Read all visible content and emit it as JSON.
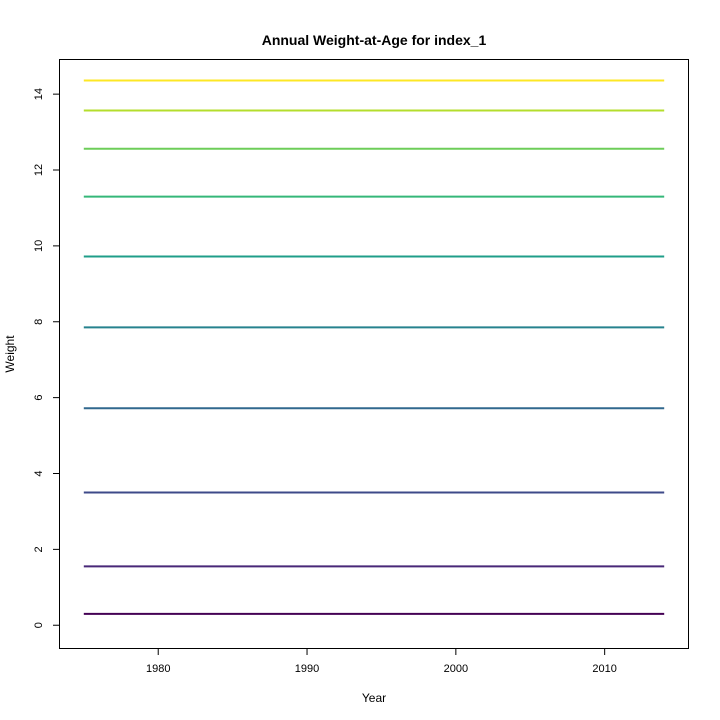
{
  "chart_data": {
    "type": "line",
    "title": "Annual Weight-at-Age for index_1",
    "xlabel": "Year",
    "ylabel": "Weight",
    "xlim": [
      1973.4,
      2015.6
    ],
    "ylim": [
      -0.6,
      14.9
    ],
    "x_ticks": [
      1980,
      1990,
      2000,
      2010
    ],
    "y_ticks": [
      0,
      2,
      4,
      6,
      8,
      10,
      12,
      14
    ],
    "x": [
      1975,
      2014
    ],
    "series": [
      {
        "values": [
          0.3,
          0.3
        ],
        "color": "#440154"
      },
      {
        "values": [
          1.55,
          1.55
        ],
        "color": "#482878"
      },
      {
        "values": [
          3.5,
          3.5
        ],
        "color": "#3E4A89"
      },
      {
        "values": [
          5.72,
          5.72
        ],
        "color": "#31688E"
      },
      {
        "values": [
          7.85,
          7.85
        ],
        "color": "#26828E"
      },
      {
        "values": [
          9.72,
          9.72
        ],
        "color": "#1F9E89"
      },
      {
        "values": [
          11.3,
          11.3
        ],
        "color": "#35B779"
      },
      {
        "values": [
          12.56,
          12.56
        ],
        "color": "#6DCD59"
      },
      {
        "values": [
          13.57,
          13.57
        ],
        "color": "#B4DE2C"
      },
      {
        "values": [
          14.36,
          14.36
        ],
        "color": "#FDE725"
      }
    ],
    "grid": false,
    "legend": "none"
  }
}
